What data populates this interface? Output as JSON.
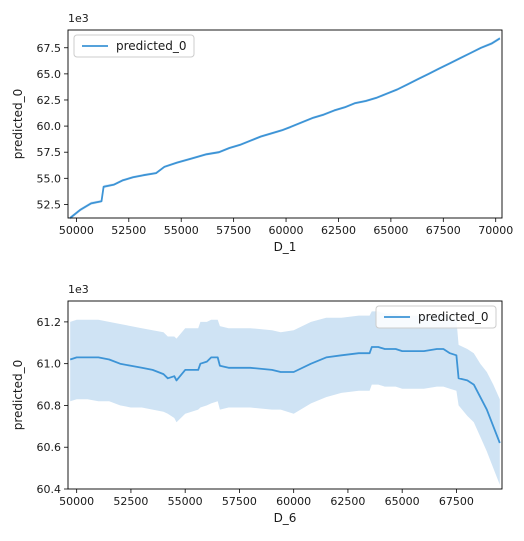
{
  "chart_data": [
    {
      "type": "line",
      "xlabel": "D_1",
      "ylabel": "predicted_0",
      "offset_label": "1e3",
      "legend_position": "top-left",
      "grid": false,
      "xlim": [
        49600,
        70300
      ],
      "ylim": [
        51.2,
        69.2
      ],
      "xticks": [
        50000,
        52500,
        55000,
        57500,
        60000,
        62500,
        65000,
        67500,
        70000
      ],
      "yticks": [
        52.5,
        55.0,
        57.5,
        60.0,
        62.5,
        65.0,
        67.5
      ],
      "series": [
        {
          "name": "predicted_0",
          "color": "#3d94d6",
          "x": [
            49700,
            50200,
            50700,
            51200,
            51300,
            51800,
            52200,
            52700,
            53200,
            53800,
            54200,
            54800,
            55500,
            56200,
            56800,
            57300,
            57800,
            58300,
            58800,
            59300,
            59800,
            60200,
            60800,
            61300,
            61800,
            62300,
            62800,
            63300,
            63800,
            64300,
            64800,
            65300,
            65800,
            66300,
            66800,
            67300,
            67800,
            68300,
            68800,
            69300,
            69800,
            70200
          ],
          "y": [
            51.2,
            52.0,
            52.6,
            52.8,
            54.2,
            54.4,
            54.8,
            55.1,
            55.3,
            55.5,
            56.1,
            56.5,
            56.9,
            57.3,
            57.5,
            57.9,
            58.2,
            58.6,
            59.0,
            59.3,
            59.6,
            59.9,
            60.4,
            60.8,
            61.1,
            61.5,
            61.8,
            62.2,
            62.4,
            62.7,
            63.1,
            63.5,
            64.0,
            64.5,
            65.0,
            65.5,
            66.0,
            66.5,
            67.0,
            67.5,
            67.9,
            68.4
          ],
          "band_width": [
            0.15,
            0.15,
            0.15,
            0.12,
            0.15,
            0.12,
            0.12,
            0.12,
            0.12,
            0.12,
            0.12,
            0.12,
            0.12,
            0.12,
            0.12,
            0.12,
            0.12,
            0.12,
            0.12,
            0.12,
            0.12,
            0.12,
            0.12,
            0.12,
            0.12,
            0.12,
            0.12,
            0.12,
            0.12,
            0.12,
            0.12,
            0.12,
            0.12,
            0.12,
            0.12,
            0.12,
            0.12,
            0.12,
            0.12,
            0.12,
            0.15,
            0.15
          ]
        }
      ]
    },
    {
      "type": "line",
      "xlabel": "D_6",
      "ylabel": "predicted_0",
      "offset_label": "1e3",
      "legend_position": "top-right",
      "grid": false,
      "xlim": [
        49600,
        69600
      ],
      "ylim": [
        60.4,
        61.3
      ],
      "xticks": [
        50000,
        52500,
        55000,
        57500,
        60000,
        62500,
        65000,
        67500
      ],
      "yticks": [
        60.4,
        60.6,
        60.8,
        61.0,
        61.2
      ],
      "series": [
        {
          "name": "predicted_0",
          "color": "#3d94d6",
          "band_color": "#cfe3f4",
          "x": [
            49700,
            50000,
            50500,
            51000,
            51500,
            52000,
            52500,
            53000,
            53500,
            54000,
            54200,
            54500,
            54600,
            55000,
            55600,
            55700,
            56000,
            56200,
            56500,
            56600,
            57000,
            58000,
            59000,
            59400,
            60000,
            60800,
            61500,
            62200,
            63000,
            63500,
            63600,
            63900,
            64200,
            64700,
            65000,
            65500,
            66000,
            66600,
            66900,
            67200,
            67500,
            67600,
            68000,
            68300,
            68600,
            68900,
            69200,
            69500
          ],
          "y": [
            61.02,
            61.03,
            61.03,
            61.03,
            61.02,
            61.0,
            60.99,
            60.98,
            60.97,
            60.95,
            60.93,
            60.94,
            60.92,
            60.97,
            60.97,
            61.0,
            61.01,
            61.03,
            61.03,
            60.99,
            60.98,
            60.98,
            60.97,
            60.96,
            60.96,
            61.0,
            61.03,
            61.04,
            61.05,
            61.05,
            61.08,
            61.08,
            61.07,
            61.07,
            61.06,
            61.06,
            61.06,
            61.07,
            61.07,
            61.05,
            61.04,
            60.93,
            60.92,
            60.9,
            60.84,
            60.78,
            60.7,
            60.62
          ],
          "lower": [
            60.82,
            60.83,
            60.83,
            60.82,
            60.82,
            60.8,
            60.79,
            60.79,
            60.78,
            60.77,
            60.76,
            60.74,
            60.72,
            60.76,
            60.78,
            60.79,
            60.8,
            60.81,
            60.82,
            60.78,
            60.79,
            60.79,
            60.78,
            60.78,
            60.76,
            60.81,
            60.84,
            60.86,
            60.87,
            60.87,
            60.9,
            60.9,
            60.89,
            60.89,
            60.88,
            60.88,
            60.88,
            60.89,
            60.89,
            60.88,
            60.87,
            60.8,
            60.75,
            60.72,
            60.65,
            60.58,
            60.5,
            60.42
          ],
          "upper": [
            61.2,
            61.21,
            61.21,
            61.21,
            61.2,
            61.19,
            61.18,
            61.17,
            61.16,
            61.15,
            61.13,
            61.13,
            61.12,
            61.17,
            61.17,
            61.2,
            61.2,
            61.21,
            61.21,
            61.18,
            61.17,
            61.17,
            61.16,
            61.15,
            61.16,
            61.2,
            61.22,
            61.22,
            61.23,
            61.23,
            61.25,
            61.25,
            61.24,
            61.24,
            61.23,
            61.23,
            61.23,
            61.24,
            61.24,
            61.22,
            61.21,
            61.09,
            61.07,
            61.05,
            61.0,
            60.96,
            60.9,
            60.83
          ]
        }
      ]
    }
  ]
}
